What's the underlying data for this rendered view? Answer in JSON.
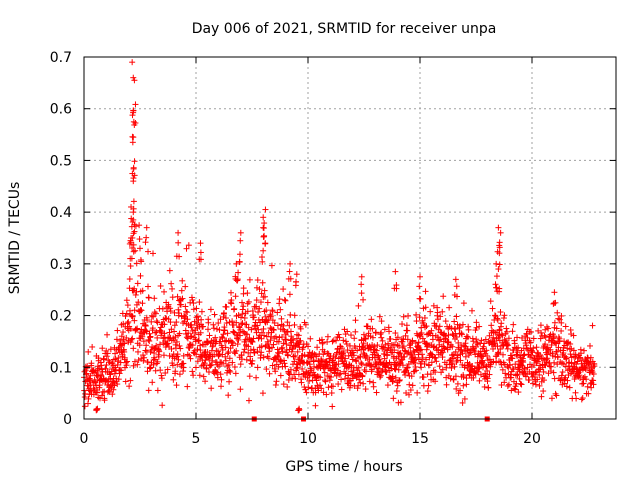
{
  "chart_data": {
    "type": "scatter",
    "title": "Day 006 of 2021, SRMTID for receiver unpa",
    "xlabel": "GPS time / hours",
    "ylabel": "SRMTID / TECUs",
    "xlim": [
      0,
      23.75
    ],
    "ylim": [
      0,
      0.7
    ],
    "xticks": [
      0,
      5,
      10,
      15,
      20
    ],
    "yticks": [
      0,
      0.1,
      0.2,
      0.3,
      0.4,
      0.5,
      0.6,
      0.7
    ],
    "xtick_labels": [
      "0",
      "5",
      "10",
      "15",
      "20"
    ],
    "ytick_labels": [
      "0",
      "0.1",
      "0.2",
      "0.3",
      "0.4",
      "0.5",
      "0.6",
      "0.7"
    ],
    "grid": true,
    "marker": "plus",
    "series_color": "#ff0000",
    "data_extent": [
      0.0,
      22.8
    ],
    "zero_markers_x": [
      7.6,
      9.8,
      18.0
    ],
    "baseline": [
      [
        0.0,
        0.08
      ],
      [
        0.5,
        0.07
      ],
      [
        1.0,
        0.09
      ],
      [
        1.5,
        0.1
      ],
      [
        1.9,
        0.15
      ],
      [
        2.2,
        0.22
      ],
      [
        2.5,
        0.17
      ],
      [
        3.0,
        0.14
      ],
      [
        3.5,
        0.15
      ],
      [
        4.0,
        0.15
      ],
      [
        4.5,
        0.17
      ],
      [
        5.0,
        0.15
      ],
      [
        5.5,
        0.12
      ],
      [
        6.0,
        0.13
      ],
      [
        6.5,
        0.15
      ],
      [
        7.0,
        0.17
      ],
      [
        7.5,
        0.16
      ],
      [
        8.0,
        0.18
      ],
      [
        8.5,
        0.15
      ],
      [
        9.0,
        0.14
      ],
      [
        9.5,
        0.12
      ],
      [
        10.0,
        0.1
      ],
      [
        11.0,
        0.1
      ],
      [
        12.0,
        0.11
      ],
      [
        13.0,
        0.12
      ],
      [
        14.0,
        0.11
      ],
      [
        15.0,
        0.13
      ],
      [
        15.5,
        0.15
      ],
      [
        16.0,
        0.14
      ],
      [
        17.0,
        0.12
      ],
      [
        18.0,
        0.11
      ],
      [
        18.5,
        0.17
      ],
      [
        19.0,
        0.11
      ],
      [
        20.0,
        0.11
      ],
      [
        21.0,
        0.14
      ],
      [
        22.0,
        0.1
      ],
      [
        22.8,
        0.09
      ]
    ],
    "peaks": [
      {
        "x": 2.15,
        "y": 0.69
      },
      {
        "x": 2.2,
        "y": 0.66
      },
      {
        "x": 2.25,
        "y": 0.655
      },
      {
        "x": 2.2,
        "y": 0.545
      },
      {
        "x": 2.18,
        "y": 0.535
      },
      {
        "x": 2.2,
        "y": 0.46
      },
      {
        "x": 2.1,
        "y": 0.41
      },
      {
        "x": 2.2,
        "y": 0.4
      },
      {
        "x": 2.2,
        "y": 0.385
      },
      {
        "x": 2.1,
        "y": 0.35
      },
      {
        "x": 2.5,
        "y": 0.33
      },
      {
        "x": 2.8,
        "y": 0.37
      },
      {
        "x": 4.2,
        "y": 0.36
      },
      {
        "x": 5.2,
        "y": 0.34
      },
      {
        "x": 6.8,
        "y": 0.3
      },
      {
        "x": 7.0,
        "y": 0.36
      },
      {
        "x": 8.1,
        "y": 0.405
      },
      {
        "x": 8.0,
        "y": 0.39
      },
      {
        "x": 8.0,
        "y": 0.37
      },
      {
        "x": 9.2,
        "y": 0.3
      },
      {
        "x": 9.5,
        "y": 0.28
      },
      {
        "x": 12.4,
        "y": 0.275
      },
      {
        "x": 13.9,
        "y": 0.285
      },
      {
        "x": 15.0,
        "y": 0.275
      },
      {
        "x": 16.6,
        "y": 0.27
      },
      {
        "x": 18.5,
        "y": 0.37
      },
      {
        "x": 18.6,
        "y": 0.36
      },
      {
        "x": 18.4,
        "y": 0.3
      },
      {
        "x": 18.5,
        "y": 0.29
      },
      {
        "x": 21.0,
        "y": 0.245
      },
      {
        "x": 9.6,
        "y": 0.02
      },
      {
        "x": 0.6,
        "y": 0.02
      }
    ]
  }
}
